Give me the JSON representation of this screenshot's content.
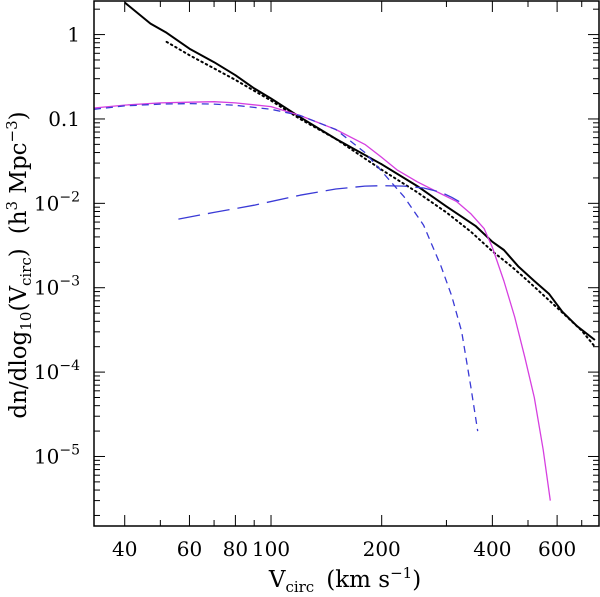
{
  "chart_data": {
    "type": "line",
    "x_scale": "log",
    "y_scale": "log",
    "xlim": [
      33,
      780
    ],
    "ylim": [
      1.5e-06,
      2.5
    ],
    "grid": false,
    "xlabel": {
      "main": "V",
      "sub": "circ",
      "units": "(km s",
      "sup": "−1",
      "close": ")"
    },
    "ylabel": {
      "main": "dn/dlog",
      "sub1": "10",
      "mid": "(V",
      "sub2": "circ",
      "close": ")",
      "units": "(h",
      "sup1": "3",
      "units2": " Mpc",
      "sup2": "−3",
      "close2": ")"
    },
    "x_ticks": [
      {
        "value": 40,
        "label": "40"
      },
      {
        "value": 60,
        "label": "60"
      },
      {
        "value": 80,
        "label": "80"
      },
      {
        "value": 100,
        "label": "100"
      },
      {
        "value": 200,
        "label": "200"
      },
      {
        "value": 400,
        "label": "400"
      },
      {
        "value": 600,
        "label": "600"
      }
    ],
    "y_ticks": [
      {
        "value": 1,
        "label": "1"
      },
      {
        "value": 0.1,
        "label": "0.1"
      },
      {
        "value": 0.01,
        "mant": "10",
        "exp": "−2"
      },
      {
        "value": 0.001,
        "mant": "10",
        "exp": "−3"
      },
      {
        "value": 0.0001,
        "mant": "10",
        "exp": "−4"
      },
      {
        "value": 1e-05,
        "mant": "10",
        "exp": "−5"
      }
    ],
    "series": [
      {
        "style": "solid",
        "color": "#000000",
        "width": 2,
        "points": [
          [
            40,
            2.4
          ],
          [
            47,
            1.35
          ],
          [
            52,
            1.05
          ],
          [
            60,
            0.68
          ],
          [
            70,
            0.47
          ],
          [
            80,
            0.33
          ],
          [
            90,
            0.23
          ],
          [
            100,
            0.175
          ],
          [
            120,
            0.105
          ],
          [
            150,
            0.058
          ],
          [
            200,
            0.029
          ],
          [
            250,
            0.016
          ],
          [
            300,
            0.0092
          ],
          [
            360,
            0.0054
          ],
          [
            400,
            0.0035
          ],
          [
            430,
            0.0028
          ],
          [
            470,
            0.0018
          ],
          [
            520,
            0.0012
          ],
          [
            570,
            0.00085
          ],
          [
            620,
            0.00052
          ],
          [
            680,
            0.00035
          ],
          [
            760,
            0.00024
          ]
        ]
      },
      {
        "style": "dotted",
        "color": "#000000",
        "width": 2,
        "points": [
          [
            52,
            0.82
          ],
          [
            60,
            0.57
          ],
          [
            80,
            0.29
          ],
          [
            100,
            0.165
          ],
          [
            120,
            0.1
          ],
          [
            150,
            0.058
          ],
          [
            200,
            0.025
          ],
          [
            250,
            0.0135
          ],
          [
            300,
            0.0078
          ],
          [
            350,
            0.0046
          ],
          [
            400,
            0.0027
          ],
          [
            450,
            0.0018
          ],
          [
            500,
            0.0012
          ],
          [
            600,
            0.00058
          ],
          [
            700,
            0.00031
          ],
          [
            760,
            0.0002
          ]
        ]
      },
      {
        "style": "solid",
        "color": "#d63fe0",
        "width": 1.3,
        "points": [
          [
            33,
            0.135
          ],
          [
            40,
            0.146
          ],
          [
            50,
            0.155
          ],
          [
            60,
            0.158
          ],
          [
            70,
            0.16
          ],
          [
            80,
            0.155
          ],
          [
            100,
            0.14
          ],
          [
            120,
            0.11
          ],
          [
            150,
            0.075
          ],
          [
            180,
            0.05
          ],
          [
            200,
            0.035
          ],
          [
            220,
            0.025
          ],
          [
            250,
            0.018
          ],
          [
            280,
            0.014
          ],
          [
            320,
            0.0105
          ],
          [
            350,
            0.0075
          ],
          [
            380,
            0.005
          ],
          [
            400,
            0.003
          ],
          [
            430,
            0.0012
          ],
          [
            460,
            0.00045
          ],
          [
            490,
            0.00015
          ],
          [
            520,
            5e-05
          ],
          [
            550,
            1.2e-05
          ],
          [
            575,
            3e-06
          ]
        ]
      },
      {
        "style": "short-dash",
        "color": "#3a3ad6",
        "width": 1.3,
        "points": [
          [
            33,
            0.13
          ],
          [
            40,
            0.143
          ],
          [
            50,
            0.15
          ],
          [
            60,
            0.152
          ],
          [
            70,
            0.15
          ],
          [
            80,
            0.145
          ],
          [
            100,
            0.13
          ],
          [
            120,
            0.11
          ],
          [
            150,
            0.075
          ],
          [
            180,
            0.04
          ],
          [
            200,
            0.024
          ],
          [
            230,
            0.012
          ],
          [
            260,
            0.0055
          ],
          [
            290,
            0.0018
          ],
          [
            310,
            0.0008
          ],
          [
            330,
            0.0003
          ],
          [
            350,
            6.5e-05
          ],
          [
            365,
            2e-05
          ]
        ]
      },
      {
        "style": "long-dash",
        "color": "#3a3ad6",
        "width": 1.3,
        "points": [
          [
            56,
            0.0065
          ],
          [
            70,
            0.0078
          ],
          [
            90,
            0.0095
          ],
          [
            120,
            0.0125
          ],
          [
            150,
            0.0148
          ],
          [
            180,
            0.016
          ],
          [
            200,
            0.0162
          ],
          [
            230,
            0.016
          ],
          [
            260,
            0.0152
          ],
          [
            290,
            0.0135
          ],
          [
            310,
            0.0118
          ],
          [
            325,
            0.0105
          ]
        ]
      }
    ]
  }
}
